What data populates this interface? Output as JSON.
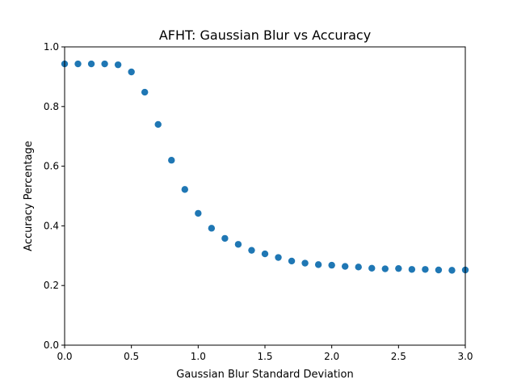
{
  "chart_data": {
    "type": "scatter",
    "title": "AFHT: Gaussian Blur vs Accuracy",
    "xlabel": "Gaussian Blur Standard Deviation",
    "ylabel": "Accuracy Percentage",
    "xlim": [
      0.0,
      3.0
    ],
    "ylim": [
      0.0,
      1.0
    ],
    "xticks": [
      "0.0",
      "0.5",
      "1.0",
      "1.5",
      "2.0",
      "2.5",
      "3.0"
    ],
    "yticks": [
      "0.0",
      "0.2",
      "0.4",
      "0.6",
      "0.8",
      "1.0"
    ],
    "grid": false,
    "marker_color": "#1f77b4",
    "x": [
      0.0,
      0.1,
      0.2,
      0.3,
      0.4,
      0.5,
      0.6,
      0.7,
      0.8,
      0.9,
      1.0,
      1.1,
      1.2,
      1.3,
      1.4,
      1.5,
      1.6,
      1.7,
      1.8,
      1.9,
      2.0,
      2.1,
      2.2,
      2.3,
      2.4,
      2.5,
      2.6,
      2.7,
      2.8,
      2.9,
      3.0
    ],
    "y": [
      0.943,
      0.943,
      0.943,
      0.943,
      0.94,
      0.916,
      0.848,
      0.74,
      0.62,
      0.522,
      0.442,
      0.392,
      0.358,
      0.338,
      0.318,
      0.306,
      0.294,
      0.282,
      0.275,
      0.27,
      0.268,
      0.264,
      0.262,
      0.258,
      0.256,
      0.257,
      0.254,
      0.254,
      0.252,
      0.251,
      0.252
    ]
  }
}
